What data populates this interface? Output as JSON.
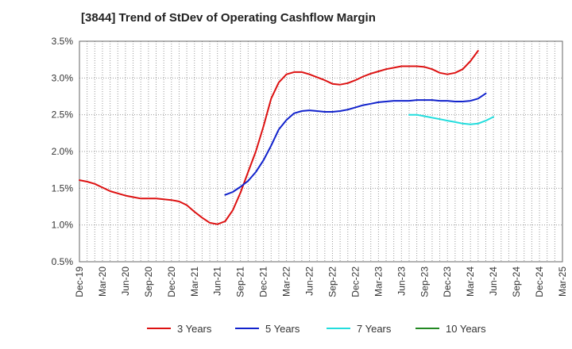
{
  "chart_data": {
    "type": "line",
    "title": "[3844]  Trend of StDev of Operating Cashflow Margin",
    "xlabel": "",
    "ylabel": "",
    "ylim": [
      0.5,
      3.5
    ],
    "y_ticks": [
      "0.5%",
      "1.0%",
      "1.5%",
      "2.0%",
      "2.5%",
      "3.0%",
      "3.5%"
    ],
    "y_tick_values": [
      0.5,
      1.0,
      1.5,
      2.0,
      2.5,
      3.0,
      3.5
    ],
    "x_tick_labels": [
      "Dec-19",
      "Mar-20",
      "Jun-20",
      "Sep-20",
      "Dec-20",
      "Mar-21",
      "Jun-21",
      "Sep-21",
      "Dec-21",
      "Mar-22",
      "Jun-22",
      "Sep-22",
      "Dec-22",
      "Mar-23",
      "Jun-23",
      "Sep-23",
      "Dec-23",
      "Mar-24",
      "Jun-24",
      "Sep-24",
      "Dec-24",
      "Mar-25"
    ],
    "grid": true,
    "legend_position": "bottom",
    "series": [
      {
        "name": "3 Years",
        "color": "#dd1111",
        "start_index": 0,
        "values": [
          1.61,
          1.59,
          1.56,
          1.51,
          1.46,
          1.43,
          1.4,
          1.38,
          1.36,
          1.36,
          1.36,
          1.35,
          1.34,
          1.32,
          1.27,
          1.18,
          1.1,
          1.03,
          1.01,
          1.05,
          1.2,
          1.44,
          1.72,
          2.0,
          2.34,
          2.72,
          2.94,
          3.05,
          3.08,
          3.08,
          3.05,
          3.01,
          2.97,
          2.92,
          2.91,
          2.93,
          2.97,
          3.02,
          3.06,
          3.09,
          3.12,
          3.14,
          3.16,
          3.16,
          3.16,
          3.15,
          3.12,
          3.07,
          3.05,
          3.07,
          3.12,
          3.23,
          3.37
        ]
      },
      {
        "name": "5 Years",
        "color": "#1122cc",
        "start_index": 19,
        "values": [
          1.41,
          1.45,
          1.52,
          1.6,
          1.72,
          1.88,
          2.08,
          2.3,
          2.43,
          2.52,
          2.55,
          2.56,
          2.55,
          2.54,
          2.54,
          2.55,
          2.57,
          2.6,
          2.63,
          2.65,
          2.67,
          2.68,
          2.69,
          2.69,
          2.69,
          2.7,
          2.7,
          2.7,
          2.69,
          2.69,
          2.68,
          2.68,
          2.69,
          2.72,
          2.79
        ]
      },
      {
        "name": "7 Years",
        "color": "#22dddd",
        "start_index": 43,
        "values": [
          2.5,
          2.5,
          2.48,
          2.46,
          2.44,
          2.42,
          2.4,
          2.38,
          2.37,
          2.38,
          2.42,
          2.47
        ]
      },
      {
        "name": "10 Years",
        "color": "#228822",
        "start_index": 0,
        "values": []
      }
    ]
  }
}
